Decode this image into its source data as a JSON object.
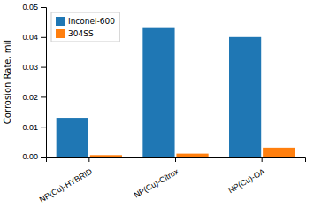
{
  "chart_data": {
    "type": "bar",
    "categories": [
      "NP(Cu)-HYBRID",
      "NP(Cu)-Citrox",
      "NP(Cu)-OA"
    ],
    "series": [
      {
        "name": "Inconel-600",
        "values": [
          0.013,
          0.043,
          0.04
        ]
      },
      {
        "name": "304SS",
        "values": [
          0.0005,
          0.001,
          0.003
        ]
      }
    ],
    "ylabel": "Corrosion Rate, mil",
    "ylim": [
      0,
      0.05
    ],
    "yticks": [
      {
        "value": 0,
        "label": "0.00"
      },
      0.01,
      0.02,
      0.03,
      0.04,
      0.05
    ],
    "legend": "top-left",
    "grid": false
  }
}
